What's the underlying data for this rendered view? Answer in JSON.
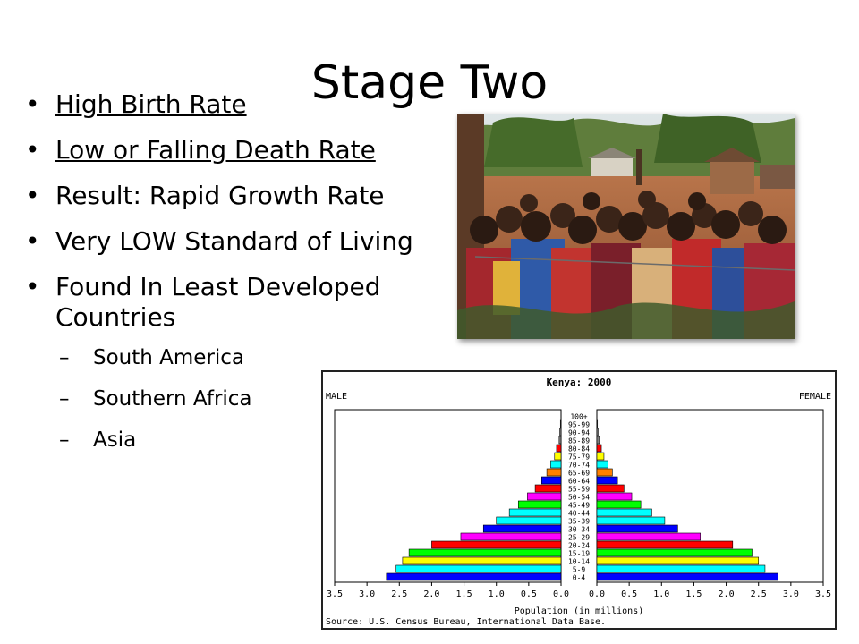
{
  "slide": {
    "title": "Stage Two",
    "bullets": [
      {
        "text": "High Birth Rate",
        "underline": true
      },
      {
        "text": "Low or Falling Death Rate",
        "underline": true
      },
      {
        "text": "Result: Rapid Growth Rate",
        "underline": false
      },
      {
        "text": "Very LOW Standard of Living",
        "underline": false
      },
      {
        "text": "Found In Least Developed Countries",
        "underline": false
      }
    ],
    "subbullets": [
      "South America",
      "Southern Africa",
      "Asia"
    ]
  },
  "chart_data": {
    "type": "bar",
    "orientation": "horizontal-pyramid",
    "title": "Kenya: 2000",
    "left_label": "MALE",
    "right_label": "FEMALE",
    "xlabel": "Population (in millions)",
    "source": "Source: U.S. Census Bureau, International Data Base.",
    "xlim": [
      0,
      3.5
    ],
    "xticks": [
      "3.5",
      "3.0",
      "2.5",
      "2.0",
      "1.5",
      "1.0",
      "0.5",
      "0.0"
    ],
    "categories": [
      "100+",
      "95-99",
      "90-94",
      "85-89",
      "80-84",
      "75-79",
      "70-74",
      "65-69",
      "60-64",
      "55-59",
      "50-54",
      "45-49",
      "40-44",
      "35-39",
      "30-34",
      "25-29",
      "20-24",
      "15-19",
      "10-14",
      "5-9",
      "0-4"
    ],
    "colors": [
      "#808080",
      "#808080",
      "#808080",
      "#808080",
      "#ff0000",
      "#ffff00",
      "#00ffff",
      "#ff8000",
      "#0000ff",
      "#ff0000",
      "#ff00ff",
      "#00ff00",
      "#00ffff",
      "#00ffff",
      "#0000ff",
      "#ff00ff",
      "#ff0000",
      "#00ff00",
      "#ffff00",
      "#00ffff",
      "#0000ff"
    ],
    "series": [
      {
        "name": "MALE",
        "values": [
          0.0,
          0.01,
          0.02,
          0.03,
          0.07,
          0.1,
          0.16,
          0.22,
          0.3,
          0.4,
          0.52,
          0.66,
          0.8,
          1.0,
          1.2,
          1.55,
          2.0,
          2.35,
          2.45,
          2.55,
          2.7
        ]
      },
      {
        "name": "FEMALE",
        "values": [
          0.0,
          0.01,
          0.02,
          0.04,
          0.07,
          0.11,
          0.17,
          0.24,
          0.32,
          0.42,
          0.54,
          0.68,
          0.85,
          1.05,
          1.25,
          1.6,
          2.1,
          2.4,
          2.5,
          2.6,
          2.8
        ]
      }
    ],
    "grid": false
  }
}
